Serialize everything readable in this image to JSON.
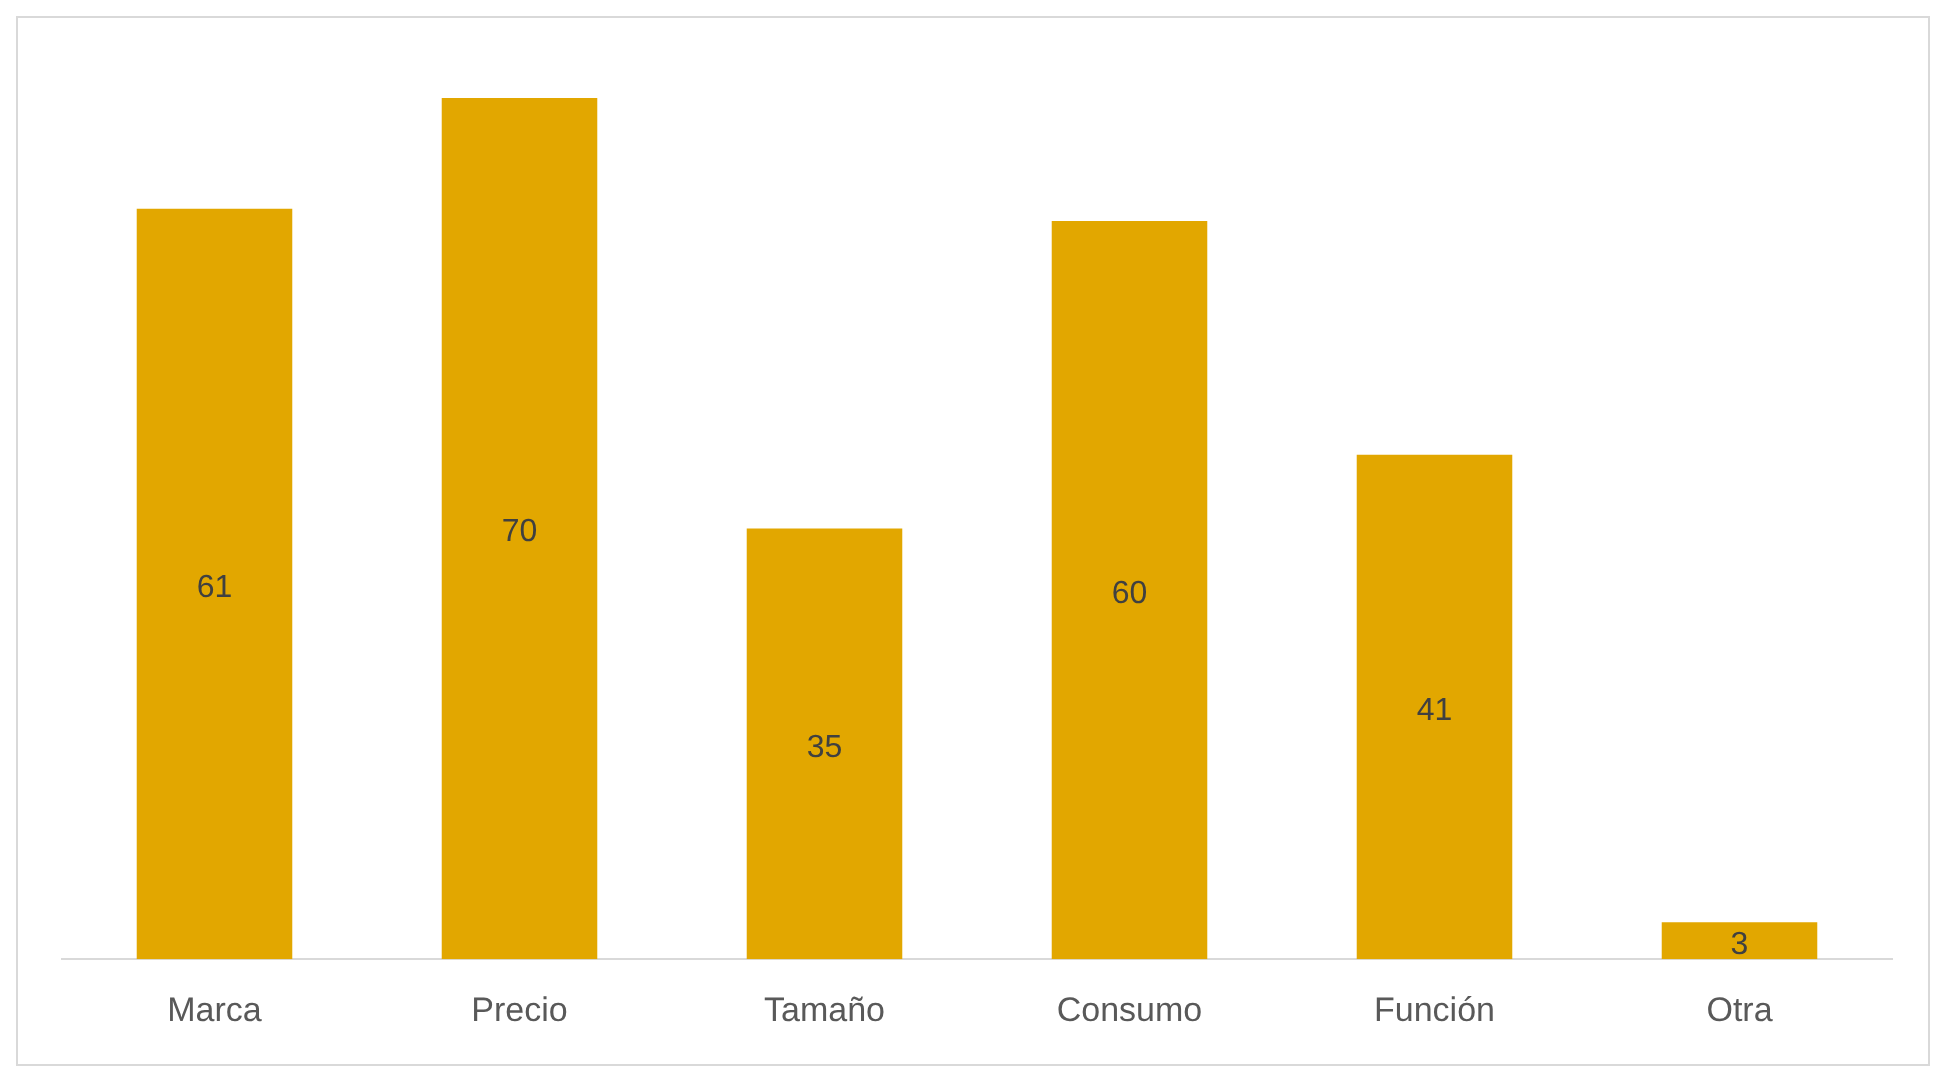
{
  "chart_data": {
    "type": "bar",
    "categories": [
      "Marca",
      "Precio",
      "Tamaño",
      "Consumo",
      "Función",
      "Otra"
    ],
    "values": [
      61,
      70,
      35,
      60,
      41,
      3
    ],
    "color": "#e2a700",
    "data_labels": true,
    "grid": false,
    "legend": false
  }
}
